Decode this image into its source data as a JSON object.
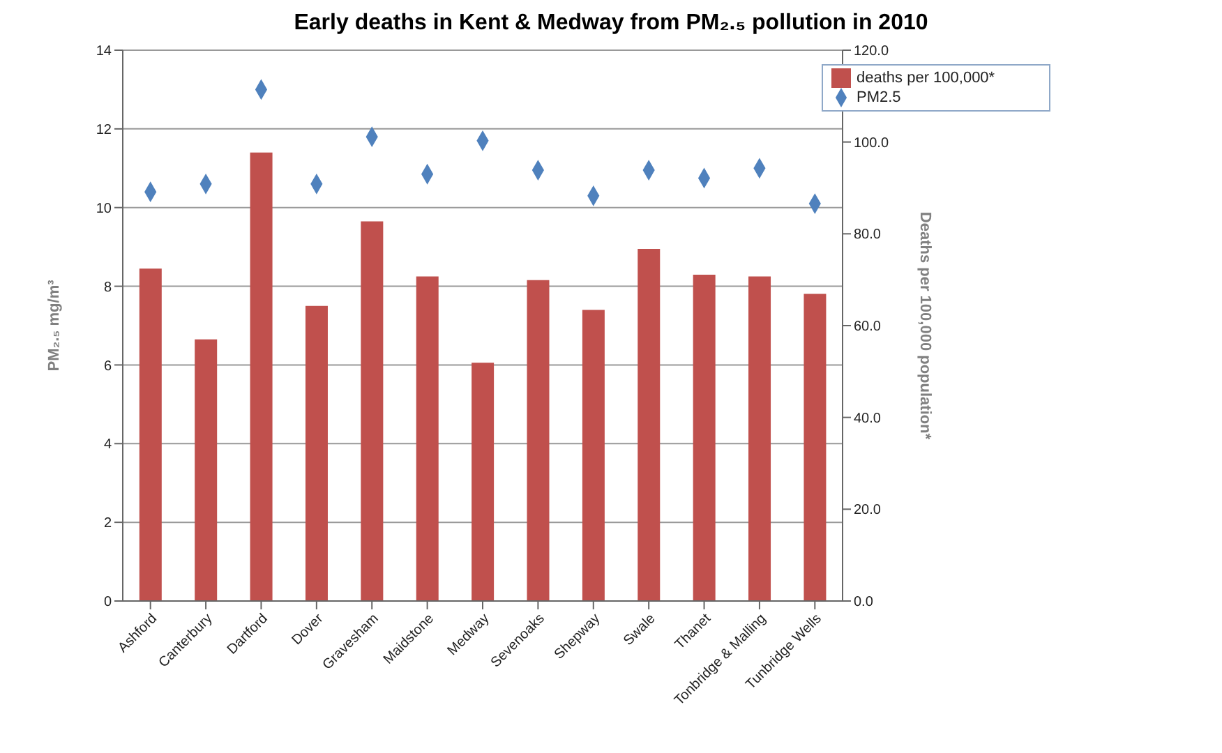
{
  "chart_data": {
    "type": "bar",
    "title": "Early deaths in Kent & Medway from PM₂.₅ pollution in 2010",
    "ylabel": "PM₂.₅ mg/m³",
    "y2label": "Deaths per 100,000 population*",
    "categories": [
      "Ashford",
      "Canterbury",
      "Dartford",
      "Dover",
      "Gravesham",
      "Maidstone",
      "Medway",
      "Sevenoaks",
      "Shepway",
      "Swale",
      "Thanet",
      "Tonbridge & Malling",
      "Tunbridge Wells"
    ],
    "series": [
      {
        "name": "deaths per 100,000*",
        "axis": "y2",
        "color": "#c0504d",
        "values": [
          72.4,
          57,
          97.7,
          64.3,
          82.7,
          70.7,
          51.9,
          69.9,
          63.4,
          76.7,
          71.1,
          70.7,
          66.9
        ]
      },
      {
        "name": "PM2.5",
        "type": "scatter",
        "axis": "y",
        "color": "#4f81bd",
        "values": [
          10.4,
          10.6,
          13.0,
          10.6,
          11.8,
          10.85,
          11.7,
          10.95,
          10.3,
          10.95,
          10.75,
          11.0,
          10.1
        ]
      }
    ],
    "ylim": [
      0,
      14
    ],
    "yticks": [
      0,
      2,
      4,
      6,
      8,
      10,
      12,
      14
    ],
    "y2lim": [
      0,
      120
    ],
    "y2ticks": [
      {
        "value": 0,
        "label": "0.0"
      },
      {
        "value": 20,
        "label": "20.0"
      },
      {
        "value": 40,
        "label": "40.0"
      },
      {
        "value": 60,
        "label": "60.0"
      },
      {
        "value": 80,
        "label": "80.0"
      },
      {
        "value": 100,
        "label": "100.0"
      },
      {
        "value": 120,
        "label": "120.0"
      }
    ],
    "grid": "y",
    "legend": "top right",
    "marker": "diamond"
  }
}
